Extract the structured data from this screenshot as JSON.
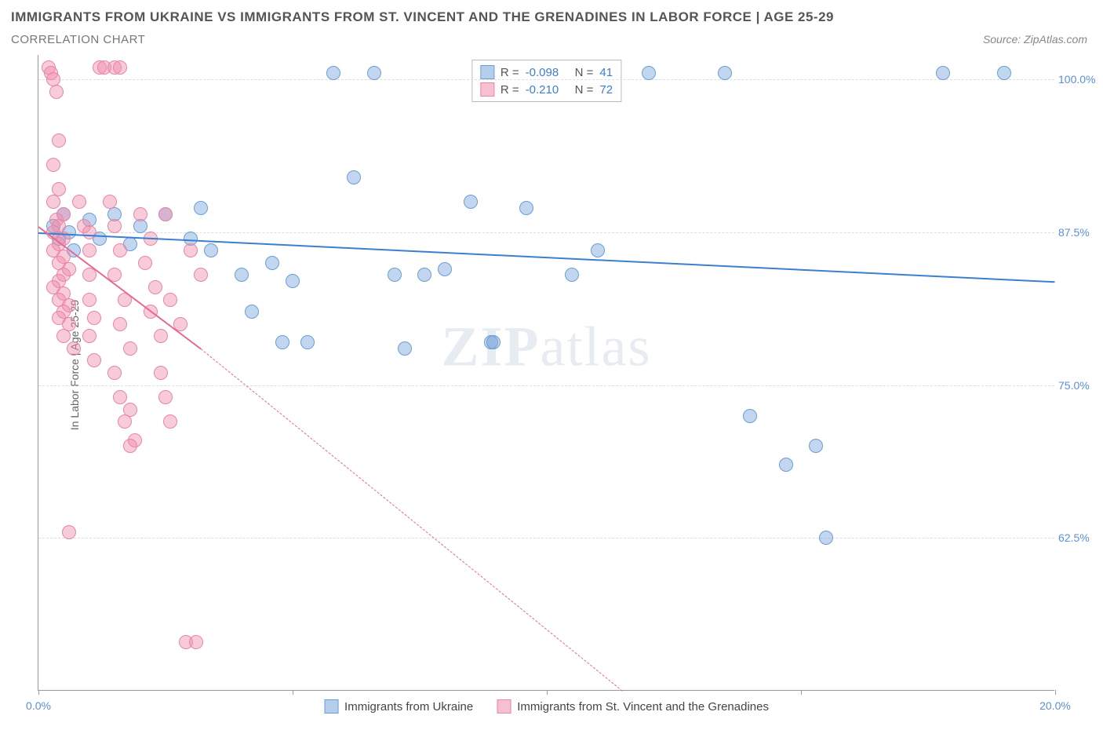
{
  "title_main": "IMMIGRANTS FROM UKRAINE VS IMMIGRANTS FROM ST. VINCENT AND THE GRENADINES IN LABOR FORCE | AGE 25-29",
  "title_sub": "CORRELATION CHART",
  "source": "Source: ZipAtlas.com",
  "y_axis_label": "In Labor Force | Age 25-29",
  "watermark_bold": "ZIP",
  "watermark_light": "atlas",
  "chart": {
    "type": "scatter",
    "xlim": [
      0,
      20
    ],
    "ylim": [
      50,
      102
    ],
    "x_ticks": [
      0,
      5,
      10,
      15,
      20
    ],
    "x_tick_labels": {
      "0": "0.0%",
      "20": "20.0%"
    },
    "y_ticks": [
      62.5,
      75,
      87.5,
      100
    ],
    "y_tick_labels": {
      "62.5": "62.5%",
      "75": "75.0%",
      "87.5": "87.5%",
      "100": "100.0%"
    },
    "grid_color": "#dddddd",
    "background_color": "#ffffff",
    "axis_color": "#999999",
    "x_label_color": "#5b8fd6",
    "y_label_color": "#5b8fd6",
    "marker_radius": 9,
    "marker_opacity": 0.55,
    "series": [
      {
        "name": "Immigrants from Ukraine",
        "color_fill": "rgba(120,165,220,0.45)",
        "color_stroke": "#6a9fd4",
        "trend_color": "#3b7fd0",
        "r_value": "-0.098",
        "n_value": "41",
        "trend": {
          "x1": 0,
          "y1": 87.5,
          "x2": 20,
          "y2": 83.5
        },
        "points": [
          [
            0.3,
            88
          ],
          [
            0.4,
            87
          ],
          [
            0.5,
            89
          ],
          [
            0.6,
            87.5
          ],
          [
            0.7,
            86
          ],
          [
            1.0,
            88.5
          ],
          [
            1.2,
            87
          ],
          [
            1.5,
            89
          ],
          [
            1.8,
            86.5
          ],
          [
            2.0,
            88
          ],
          [
            2.5,
            89
          ],
          [
            3.0,
            87
          ],
          [
            3.2,
            89.5
          ],
          [
            3.4,
            86
          ],
          [
            4.0,
            84
          ],
          [
            4.2,
            81
          ],
          [
            4.6,
            85
          ],
          [
            4.8,
            78.5
          ],
          [
            5.0,
            83.5
          ],
          [
            5.3,
            78.5
          ],
          [
            5.8,
            100.5
          ],
          [
            6.2,
            92
          ],
          [
            6.6,
            100.5
          ],
          [
            7.0,
            84
          ],
          [
            7.2,
            78
          ],
          [
            7.6,
            84
          ],
          [
            8.0,
            84.5
          ],
          [
            8.5,
            90
          ],
          [
            8.9,
            78.5
          ],
          [
            8.95,
            78.5
          ],
          [
            9.6,
            89.5
          ],
          [
            10.5,
            84
          ],
          [
            11.0,
            86
          ],
          [
            12.0,
            100.5
          ],
          [
            13.5,
            100.5
          ],
          [
            14.0,
            72.5
          ],
          [
            14.7,
            68.5
          ],
          [
            15.3,
            70
          ],
          [
            15.5,
            62.5
          ],
          [
            17.8,
            100.5
          ],
          [
            19.0,
            100.5
          ]
        ]
      },
      {
        "name": "Immigrants from St. Vincent and the Grenadines",
        "color_fill": "rgba(240,140,170,0.45)",
        "color_stroke": "#e885a8",
        "trend_color": "#e86a92",
        "r_value": "-0.210",
        "n_value": "72",
        "trend": {
          "x1": 0,
          "y1": 88,
          "x2": 3.2,
          "y2": 78
        },
        "trend_dash": {
          "x1": 3.2,
          "y1": 78,
          "x2": 11.5,
          "y2": 50
        },
        "points": [
          [
            0.2,
            101
          ],
          [
            0.25,
            100.5
          ],
          [
            0.3,
            100
          ],
          [
            0.35,
            99
          ],
          [
            0.4,
            95
          ],
          [
            0.3,
            93
          ],
          [
            0.4,
            91
          ],
          [
            0.3,
            90
          ],
          [
            0.5,
            89
          ],
          [
            0.35,
            88.5
          ],
          [
            0.4,
            88
          ],
          [
            0.3,
            87.5
          ],
          [
            0.5,
            87
          ],
          [
            0.4,
            86.5
          ],
          [
            0.3,
            86
          ],
          [
            0.5,
            85.5
          ],
          [
            0.4,
            85
          ],
          [
            0.6,
            84.5
          ],
          [
            0.5,
            84
          ],
          [
            0.4,
            83.5
          ],
          [
            0.3,
            83
          ],
          [
            0.5,
            82.5
          ],
          [
            0.4,
            82
          ],
          [
            0.6,
            81.5
          ],
          [
            0.5,
            81
          ],
          [
            0.4,
            80.5
          ],
          [
            0.6,
            80
          ],
          [
            0.5,
            79
          ],
          [
            0.7,
            78
          ],
          [
            0.6,
            63
          ],
          [
            0.8,
            90
          ],
          [
            0.9,
            88
          ],
          [
            1.0,
            87.5
          ],
          [
            1.0,
            86
          ],
          [
            1.0,
            84
          ],
          [
            1.0,
            82
          ],
          [
            1.1,
            80.5
          ],
          [
            1.0,
            79
          ],
          [
            1.1,
            77
          ],
          [
            1.2,
            101
          ],
          [
            1.3,
            101
          ],
          [
            1.5,
            101
          ],
          [
            1.6,
            101
          ],
          [
            1.4,
            90
          ],
          [
            1.5,
            88
          ],
          [
            1.6,
            86
          ],
          [
            1.5,
            84
          ],
          [
            1.7,
            82
          ],
          [
            1.6,
            80
          ],
          [
            1.8,
            78
          ],
          [
            1.5,
            76
          ],
          [
            1.6,
            74
          ],
          [
            1.8,
            73
          ],
          [
            1.7,
            72
          ],
          [
            1.9,
            70.5
          ],
          [
            1.8,
            70
          ],
          [
            2.0,
            89
          ],
          [
            2.2,
            87
          ],
          [
            2.1,
            85
          ],
          [
            2.3,
            83
          ],
          [
            2.2,
            81
          ],
          [
            2.4,
            79
          ],
          [
            2.5,
            89
          ],
          [
            2.6,
            82
          ],
          [
            2.8,
            80
          ],
          [
            2.4,
            76
          ],
          [
            2.5,
            74
          ],
          [
            2.6,
            72
          ],
          [
            2.9,
            54
          ],
          [
            3.1,
            54
          ],
          [
            3.0,
            86
          ],
          [
            3.2,
            84
          ]
        ]
      }
    ]
  },
  "r_legend": {
    "r_label": "R =",
    "n_label": "N ="
  },
  "bottom_legend": {
    "items": [
      {
        "label": "Immigrants from Ukraine",
        "swatch_fill": "rgba(120,165,220,0.55)",
        "swatch_stroke": "#6a9fd4"
      },
      {
        "label": "Immigrants from St. Vincent and the Grenadines",
        "swatch_fill": "rgba(240,140,170,0.55)",
        "swatch_stroke": "#e885a8"
      }
    ]
  }
}
